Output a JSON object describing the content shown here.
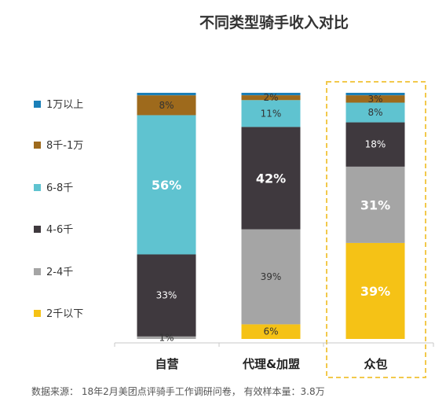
{
  "chart_data": {
    "type": "bar",
    "stacked": true,
    "percent": true,
    "title": "不同类型骑手收入对比",
    "categories": [
      "自营",
      "代理&加盟",
      "众包"
    ],
    "series": [
      {
        "name": "2千以下",
        "color": "#F5C216",
        "values": [
          0,
          6,
          39
        ],
        "labels": [
          "0%",
          "6%",
          "39%"
        ]
      },
      {
        "name": "2-4千",
        "color": "#A5A5A5",
        "values": [
          1,
          39,
          31
        ],
        "labels": [
          "1%",
          "39%",
          "31%"
        ]
      },
      {
        "name": "4-6千",
        "color": "#3F393E",
        "values": [
          33,
          42,
          18
        ],
        "labels": [
          "33%",
          "42%",
          "18%"
        ]
      },
      {
        "name": "6-8千",
        "color": "#5FC3D0",
        "values": [
          56,
          11,
          8
        ],
        "labels": [
          "56%",
          "11%",
          "8%"
        ]
      },
      {
        "name": "8千-1万",
        "color": "#9E6A1C",
        "values": [
          8,
          2,
          3
        ],
        "labels": [
          "8%",
          "2%",
          "3%"
        ]
      },
      {
        "name": "1万以上",
        "color": "#1A7FB8",
        "values": [
          1,
          1,
          1
        ],
        "labels": [
          "",
          "",
          ""
        ]
      }
    ],
    "big_labels": [
      [
        "",
        "",
        "39%"
      ],
      [
        "",
        "",
        "31%"
      ],
      [
        "",
        "42%",
        ""
      ],
      [
        "56%",
        "",
        ""
      ],
      [
        "",
        "",
        ""
      ],
      [
        "",
        "",
        ""
      ]
    ],
    "legend_position": "left",
    "highlight_category": "众包",
    "grid": false
  },
  "source": "数据来源： 18年2月美团点评骑手工作调研问卷， 有效样本量：3.8万"
}
